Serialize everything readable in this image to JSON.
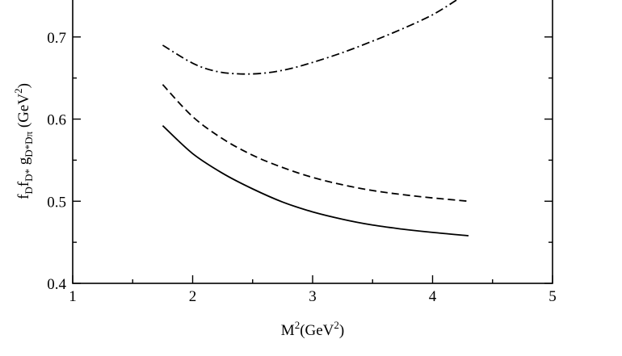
{
  "chart_data": {
    "type": "line",
    "xlabel": {
      "base": "M",
      "sup1": "2",
      "mid": "(GeV",
      "sup2": "2",
      "end": ")"
    },
    "ylabel": {
      "f1": "f",
      "sub1": "D",
      "f2": "f",
      "sub2": "D*",
      "g": " g",
      "subg": "D*Dπ",
      "unit": " (GeV",
      "unitsup": "2",
      "unitend": ")"
    },
    "xlim": [
      1,
      5
    ],
    "ylim": [
      0.4,
      0.745
    ],
    "x_ticks": [
      1,
      2,
      3,
      4,
      5
    ],
    "x_tick_labels": [
      "1",
      "2",
      "3",
      "4",
      "5"
    ],
    "x_minor_ticks": [
      1.5,
      2.5,
      3.5,
      4.5
    ],
    "y_ticks": [
      0.4,
      0.5,
      0.6,
      0.7
    ],
    "y_tick_labels": [
      "0.4",
      "0.5",
      "0.6",
      "0.7"
    ],
    "y_minor_ticks": [
      0.45,
      0.55,
      0.65
    ],
    "grid": false,
    "legend": "none",
    "series": [
      {
        "style": "solid",
        "color": "#000000",
        "x": [
          1.75,
          2.0,
          2.25,
          2.5,
          2.75,
          3.0,
          3.25,
          3.5,
          3.75,
          4.0,
          4.3
        ],
        "y": [
          0.592,
          0.558,
          0.534,
          0.515,
          0.499,
          0.487,
          0.478,
          0.471,
          0.466,
          0.462,
          0.458
        ]
      },
      {
        "style": "dashed",
        "color": "#000000",
        "x": [
          1.75,
          2.0,
          2.25,
          2.5,
          2.75,
          3.0,
          3.25,
          3.5,
          3.75,
          4.0,
          4.3
        ],
        "y": [
          0.642,
          0.603,
          0.576,
          0.556,
          0.541,
          0.529,
          0.52,
          0.513,
          0.508,
          0.504,
          0.5
        ]
      },
      {
        "style": "dashdot",
        "color": "#000000",
        "x": [
          1.75,
          2.0,
          2.2,
          2.4,
          2.6,
          2.8,
          3.0,
          3.25,
          3.5,
          3.75,
          4.0,
          4.2
        ],
        "y": [
          0.69,
          0.668,
          0.658,
          0.655,
          0.656,
          0.661,
          0.669,
          0.681,
          0.695,
          0.71,
          0.727,
          0.745
        ]
      }
    ]
  }
}
